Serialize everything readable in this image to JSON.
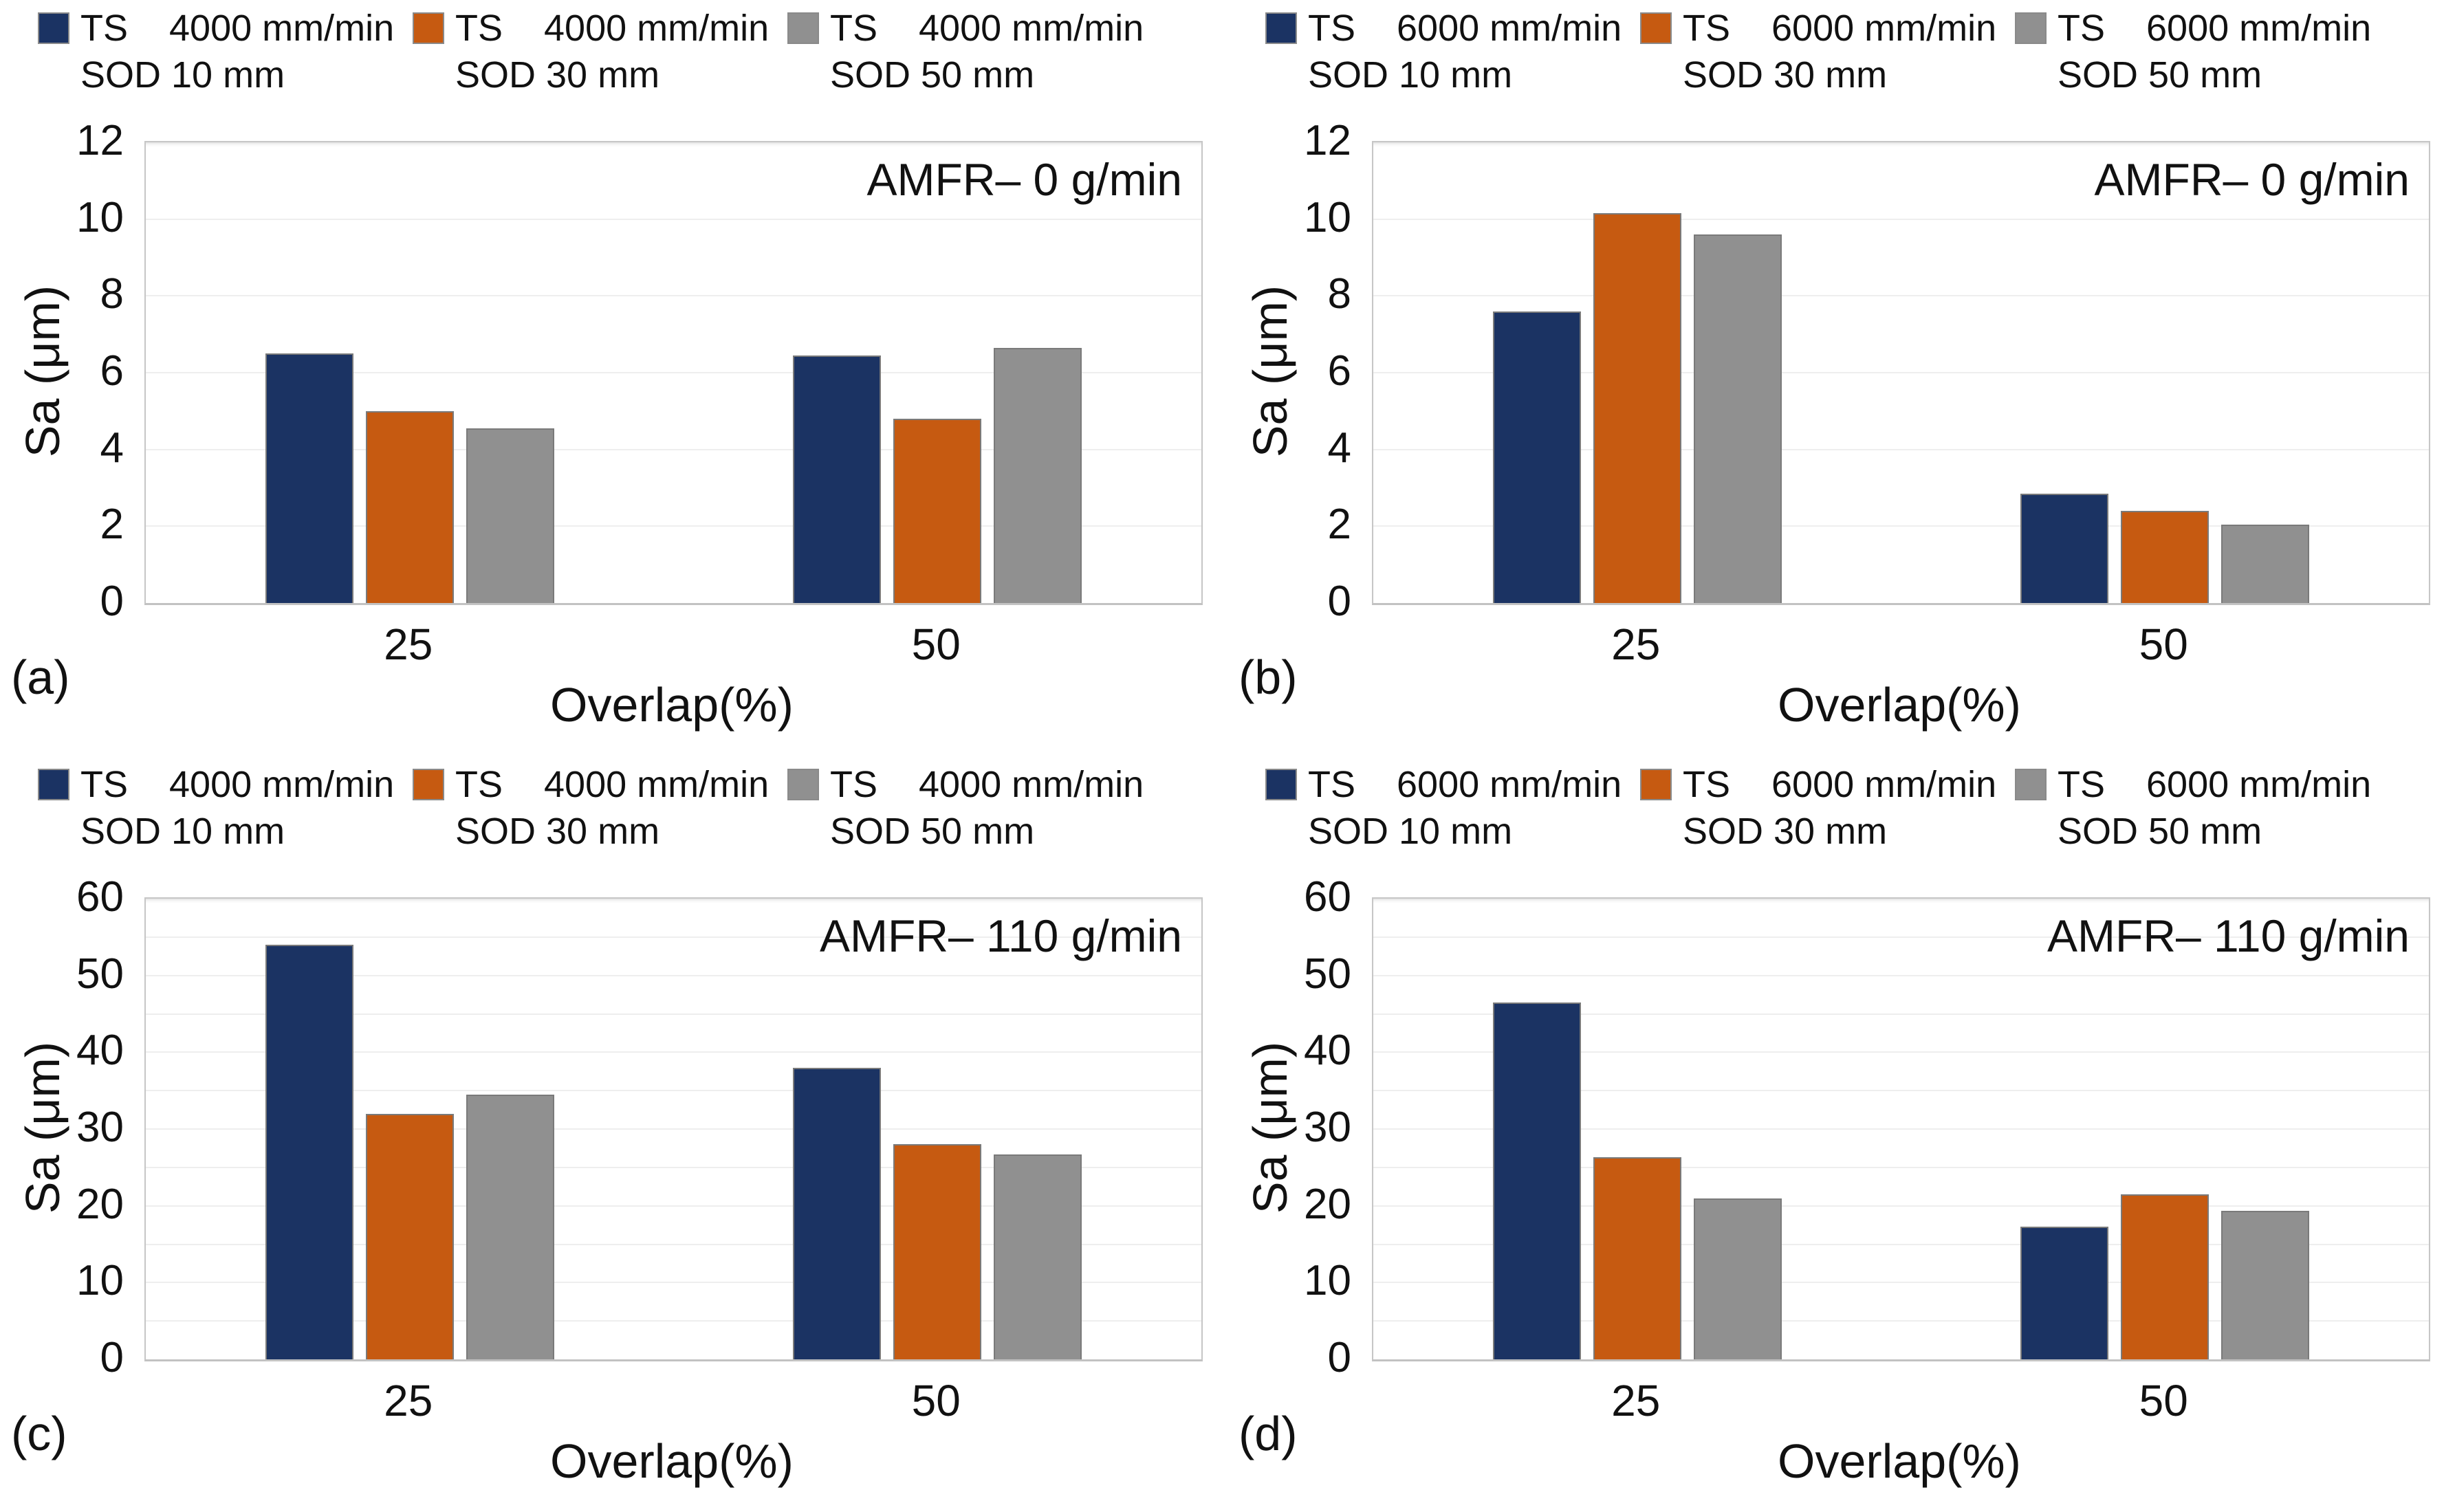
{
  "figure": {
    "background": "#ffffff",
    "text_color": "#111111",
    "plot_border_color": "#c6c6c6",
    "gridline_color": "#eeeeee",
    "bar_border_color": "#7a7a7a",
    "series_colors": {
      "sod10": "#1b3363",
      "sod30": "#c65a11",
      "sod50": "#909090"
    }
  },
  "chart_data": [
    {
      "id": "a",
      "type": "bar",
      "corner_label": "(a)",
      "title": "AMFR– 0 g/min",
      "xlabel": "Overlap(%)",
      "ylabel": "Sa (μm)",
      "categories": [
        "25",
        "50"
      ],
      "series": [
        {
          "name": "SOD 10 mm",
          "color_key": "sod10",
          "values": [
            6.5,
            6.45
          ]
        },
        {
          "name": "SOD 30 mm",
          "color_key": "sod30",
          "values": [
            5.0,
            4.8
          ]
        },
        {
          "name": "SOD 50 mm",
          "color_key": "sod50",
          "values": [
            4.55,
            6.65
          ]
        }
      ],
      "legend": [
        {
          "ts": "TS",
          "speed": "4000 mm/min",
          "sod": "SOD 10 mm",
          "color_key": "sod10"
        },
        {
          "ts": "TS",
          "speed": "4000 mm/min",
          "sod": "SOD 30 mm",
          "color_key": "sod30"
        },
        {
          "ts": "TS",
          "speed": "4000 mm/min",
          "sod": "SOD 50 mm",
          "color_key": "sod50"
        }
      ],
      "ylim": [
        0,
        12
      ],
      "yticks": [
        "0",
        "2",
        "4",
        "6",
        "8",
        "10",
        "12"
      ],
      "grid_step": 2,
      "grid": "horizontal",
      "legend_position": "top"
    },
    {
      "id": "b",
      "type": "bar",
      "corner_label": "(b)",
      "title": "AMFR– 0 g/min",
      "xlabel": "Overlap(%)",
      "ylabel": "Sa (μm)",
      "categories": [
        "25",
        "50"
      ],
      "series": [
        {
          "name": "SOD 10 mm",
          "color_key": "sod10",
          "values": [
            7.6,
            2.85
          ]
        },
        {
          "name": "SOD 30 mm",
          "color_key": "sod30",
          "values": [
            10.15,
            2.4
          ]
        },
        {
          "name": "SOD 50 mm",
          "color_key": "sod50",
          "values": [
            9.6,
            2.05
          ]
        }
      ],
      "legend": [
        {
          "ts": "TS",
          "speed": "6000 mm/min",
          "sod": "SOD 10 mm",
          "color_key": "sod10"
        },
        {
          "ts": "TS",
          "speed": "6000 mm/min",
          "sod": "SOD 30 mm",
          "color_key": "sod30"
        },
        {
          "ts": "TS",
          "speed": "6000 mm/min",
          "sod": "SOD 50 mm",
          "color_key": "sod50"
        }
      ],
      "ylim": [
        0,
        12
      ],
      "yticks": [
        "0",
        "2",
        "4",
        "6",
        "8",
        "10",
        "12"
      ],
      "grid_step": 2,
      "grid": "horizontal",
      "legend_position": "top"
    },
    {
      "id": "c",
      "type": "bar",
      "corner_label": "(c)",
      "title": "AMFR– 110 g/min",
      "xlabel": "Overlap(%)",
      "ylabel": "Sa (μm)",
      "categories": [
        "25",
        "50"
      ],
      "series": [
        {
          "name": "SOD 10 mm",
          "color_key": "sod10",
          "values": [
            54,
            38
          ]
        },
        {
          "name": "SOD 30 mm",
          "color_key": "sod30",
          "values": [
            32,
            28
          ]
        },
        {
          "name": "SOD 50 mm",
          "color_key": "sod50",
          "values": [
            34.5,
            26.7
          ]
        }
      ],
      "legend": [
        {
          "ts": "TS",
          "speed": "4000 mm/min",
          "sod": "SOD 10 mm",
          "color_key": "sod10"
        },
        {
          "ts": "TS",
          "speed": "4000 mm/min",
          "sod": "SOD 30 mm",
          "color_key": "sod30"
        },
        {
          "ts": "TS",
          "speed": "4000 mm/min",
          "sod": "SOD 50 mm",
          "color_key": "sod50"
        }
      ],
      "ylim": [
        0,
        60
      ],
      "yticks": [
        "0",
        "10",
        "20",
        "30",
        "40",
        "50",
        "60"
      ],
      "grid_step": 5,
      "grid": "horizontal",
      "legend_position": "top"
    },
    {
      "id": "d",
      "type": "bar",
      "corner_label": "(d)",
      "title": "AMFR– 110 g/min",
      "xlabel": "Overlap(%)",
      "ylabel": "Sa (μm)",
      "categories": [
        "25",
        "50"
      ],
      "series": [
        {
          "name": "SOD 10 mm",
          "color_key": "sod10",
          "values": [
            46.5,
            17.3
          ]
        },
        {
          "name": "SOD 30 mm",
          "color_key": "sod30",
          "values": [
            26.3,
            21.5
          ]
        },
        {
          "name": "SOD 50 mm",
          "color_key": "sod50",
          "values": [
            21.0,
            19.3
          ]
        }
      ],
      "legend": [
        {
          "ts": "TS",
          "speed": "6000 mm/min",
          "sod": "SOD 10 mm",
          "color_key": "sod10"
        },
        {
          "ts": "TS",
          "speed": "6000 mm/min",
          "sod": "SOD 30 mm",
          "color_key": "sod30"
        },
        {
          "ts": "TS",
          "speed": "6000 mm/min",
          "sod": "SOD 50 mm",
          "color_key": "sod50"
        }
      ],
      "ylim": [
        0,
        60
      ],
      "yticks": [
        "0",
        "10",
        "20",
        "30",
        "40",
        "50",
        "60"
      ],
      "grid_step": 5,
      "grid": "horizontal",
      "legend_position": "top"
    }
  ]
}
